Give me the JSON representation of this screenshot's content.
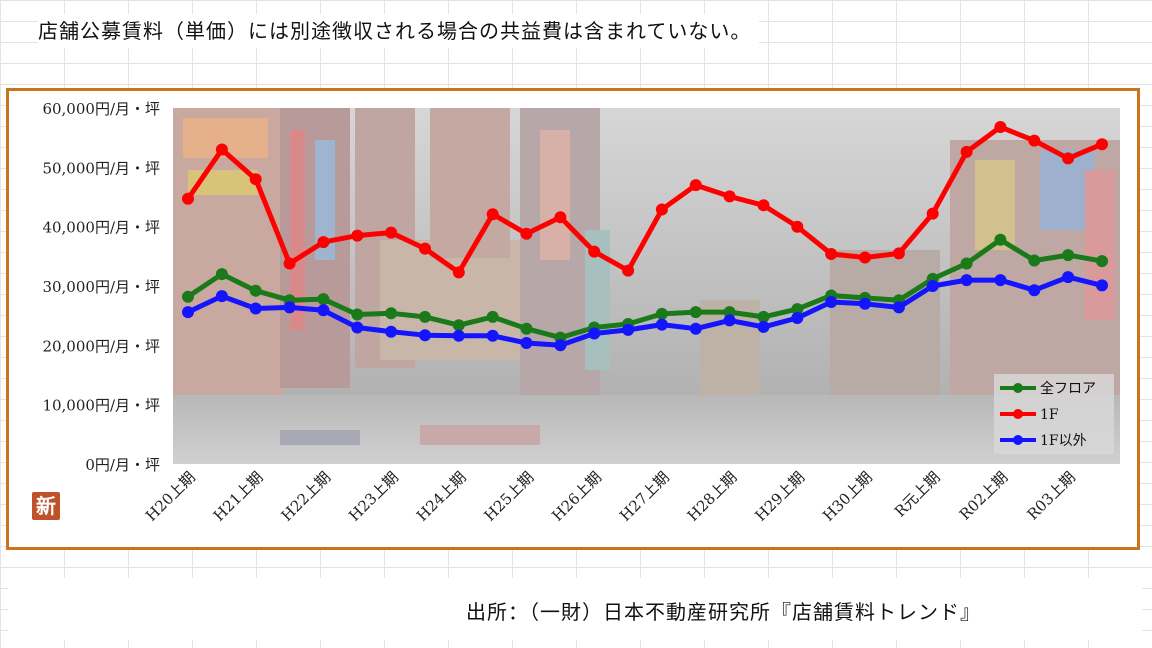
{
  "note": "店舗公募賃料（単価）には別途徴収される場合の共益費は含まれていない。",
  "source": "出所：（一財）日本不動産研究所『店舗賃料トレンド』",
  "badge": "新",
  "chart_data": {
    "type": "line",
    "x_tick_labels": [
      "H20上期",
      "H21上期",
      "H22上期",
      "H23上期",
      "H24上期",
      "H25上期",
      "H26上期",
      "H27上期",
      "H28上期",
      "H29上期",
      "H30上期",
      "R元上期",
      "R02上期",
      "R03上期"
    ],
    "y_tick_labels": [
      "0円/月・坪",
      "10,000円/月・坪",
      "20,000円/月・坪",
      "30,000円/月・坪",
      "40,000円/月・坪",
      "50,000円/月・坪",
      "60,000円/月・坪"
    ],
    "ylim": [
      0,
      60000
    ],
    "grid": false,
    "legend_position": "bottom-right",
    "series": [
      {
        "name": "全フロア",
        "color": "#1a7a1a",
        "values": [
          28200,
          32000,
          29200,
          27600,
          27800,
          25200,
          25400,
          24800,
          23400,
          24800,
          22800,
          21300,
          23000,
          23600,
          25300,
          25600,
          25600,
          24800,
          26100,
          28400,
          28000,
          27600,
          31200,
          33800,
          37800,
          34300,
          35200,
          34200
        ]
      },
      {
        "name": "1F",
        "color": "#ff0000",
        "values": [
          44700,
          53000,
          48000,
          33800,
          37400,
          38500,
          39000,
          36300,
          32300,
          42100,
          38800,
          41600,
          35800,
          32600,
          42900,
          47000,
          45100,
          43600,
          40000,
          35400,
          34800,
          35500,
          42200,
          52600,
          56800,
          54500,
          51500,
          53900
        ]
      },
      {
        "name": "1F以外",
        "color": "#1414ff",
        "values": [
          25600,
          28300,
          26200,
          26400,
          25900,
          23000,
          22300,
          21700,
          21600,
          21600,
          20400,
          20000,
          22000,
          22600,
          23500,
          22800,
          24200,
          23100,
          24600,
          27300,
          27000,
          26400,
          30000,
          31000,
          31000,
          29300,
          31500,
          30100
        ]
      }
    ]
  }
}
